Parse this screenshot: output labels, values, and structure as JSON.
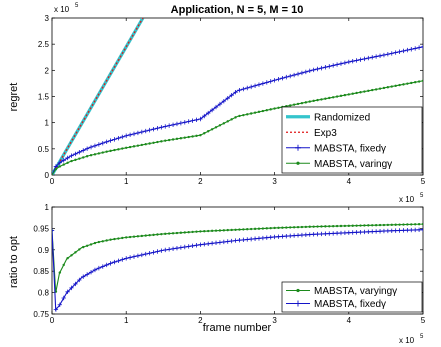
{
  "chart_data": [
    {
      "type": "line",
      "title": "Application, N = 5, M = 10",
      "ylabel": "regret",
      "xlabel": "",
      "xlim": [
        0,
        500000
      ],
      "ylim": [
        0,
        300000
      ],
      "x_ticks": [
        "0",
        "1",
        "2",
        "3",
        "4",
        "5"
      ],
      "y_ticks": [
        "0",
        "0.5",
        "1",
        "1.5",
        "2",
        "2.5",
        "3"
      ],
      "x_multiplier": {
        "base": "x 10",
        "exp": "5"
      },
      "y_multiplier": {
        "base": "x 10",
        "exp": "5"
      },
      "grid": false,
      "legend_position": "bottom-right",
      "series": [
        {
          "name": "Randomized",
          "color": "#34c4cc",
          "style": "solid-thick",
          "x": [
            0,
            122500
          ],
          "y": [
            0,
            300000
          ]
        },
        {
          "name": "Exp3",
          "color": "#e01818",
          "style": "dotted",
          "x": [
            0,
            122500
          ],
          "y": [
            0,
            300000
          ]
        },
        {
          "name": "MABSTA, fixed",
          "name_symbol": "γ",
          "color": "#1414c8",
          "style": "line-plus",
          "x": [
            0,
            5000,
            10000,
            25000,
            50000,
            75000,
            100000,
            150000,
            200000,
            250000,
            300000,
            350000,
            400000,
            450000,
            500000
          ],
          "y": [
            0,
            16000,
            23000,
            36000,
            52000,
            64000,
            75000,
            92000,
            107000,
            161000,
            181000,
            200000,
            216000,
            230000,
            245000
          ]
        },
        {
          "name": "MABSTA, varing",
          "name_symbol": "γ",
          "color": "#1c8a1c",
          "style": "line-dot",
          "x": [
            0,
            5000,
            10000,
            25000,
            50000,
            75000,
            100000,
            150000,
            200000,
            250000,
            300000,
            350000,
            400000,
            450000,
            500000
          ],
          "y": [
            0,
            11000,
            16000,
            26000,
            37000,
            45000,
            52000,
            65000,
            76000,
            112000,
            127000,
            141000,
            154000,
            167000,
            180000
          ]
        }
      ]
    },
    {
      "type": "line",
      "title": "",
      "ylabel": "ratio to opt",
      "xlabel": "frame number",
      "xlim": [
        0,
        500000
      ],
      "ylim": [
        0.75,
        1.0
      ],
      "x_ticks": [
        "0",
        "1",
        "2",
        "3",
        "4",
        "5"
      ],
      "y_ticks": [
        "0.75",
        "0.8",
        "0.85",
        "0.9",
        "0.95",
        "1"
      ],
      "x_multiplier": {
        "base": "x 10",
        "exp": "5"
      },
      "grid": false,
      "legend_position": "bottom-right",
      "series": [
        {
          "name": "MABSTA, varying",
          "name_symbol": "γ",
          "color": "#1c8a1c",
          "style": "line-dot",
          "x": [
            0,
            5000,
            10000,
            20000,
            40000,
            60000,
            80000,
            100000,
            150000,
            200000,
            250000,
            300000,
            350000,
            400000,
            450000,
            500000
          ],
          "y": [
            0.945,
            0.8,
            0.845,
            0.879,
            0.905,
            0.917,
            0.924,
            0.929,
            0.937,
            0.943,
            0.947,
            0.951,
            0.954,
            0.956,
            0.958,
            0.96
          ]
        },
        {
          "name": "MABSTA, fixed",
          "name_symbol": "γ",
          "color": "#1414c8",
          "style": "line-plus",
          "x": [
            0,
            5000,
            10000,
            20000,
            40000,
            60000,
            80000,
            100000,
            150000,
            200000,
            250000,
            300000,
            350000,
            400000,
            450000,
            500000
          ],
          "y": [
            0.945,
            0.76,
            0.77,
            0.8,
            0.835,
            0.855,
            0.869,
            0.88,
            0.899,
            0.912,
            0.922,
            0.93,
            0.936,
            0.94,
            0.944,
            0.947
          ]
        }
      ]
    }
  ]
}
